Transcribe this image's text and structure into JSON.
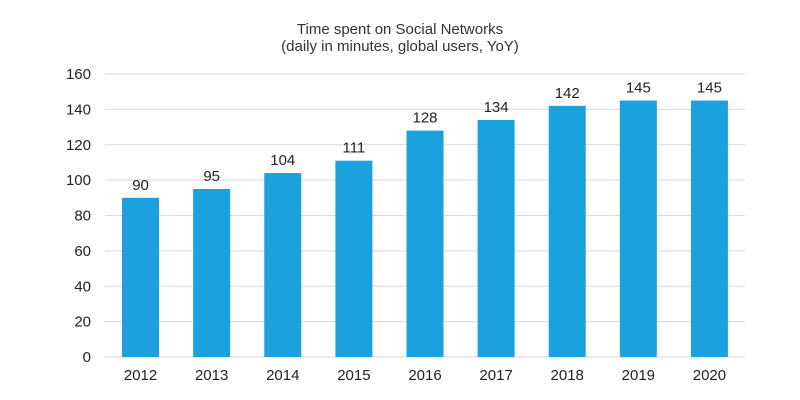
{
  "chart_data": {
    "type": "bar",
    "title": "Time spent on Social Networks",
    "subtitle": "(daily in minutes, global users, YoY)",
    "categories": [
      "2012",
      "2013",
      "2014",
      "2015",
      "2016",
      "2017",
      "2018",
      "2019",
      "2020"
    ],
    "values": [
      90,
      95,
      104,
      111,
      128,
      134,
      142,
      145,
      145
    ],
    "data_labels": [
      "90",
      "95",
      "104",
      "111",
      "128",
      "134",
      "142",
      "145",
      "145"
    ],
    "y_ticks": [
      0,
      20,
      40,
      60,
      80,
      100,
      120,
      140,
      160
    ],
    "y_tick_labels": [
      "0",
      "20",
      "40",
      "60",
      "80",
      "100",
      "120",
      "140",
      "160"
    ],
    "ylim": [
      0,
      160
    ],
    "grid": true,
    "legend": false,
    "bar_color": "#1ba1dd",
    "grid_color": "#d9d9d9"
  }
}
